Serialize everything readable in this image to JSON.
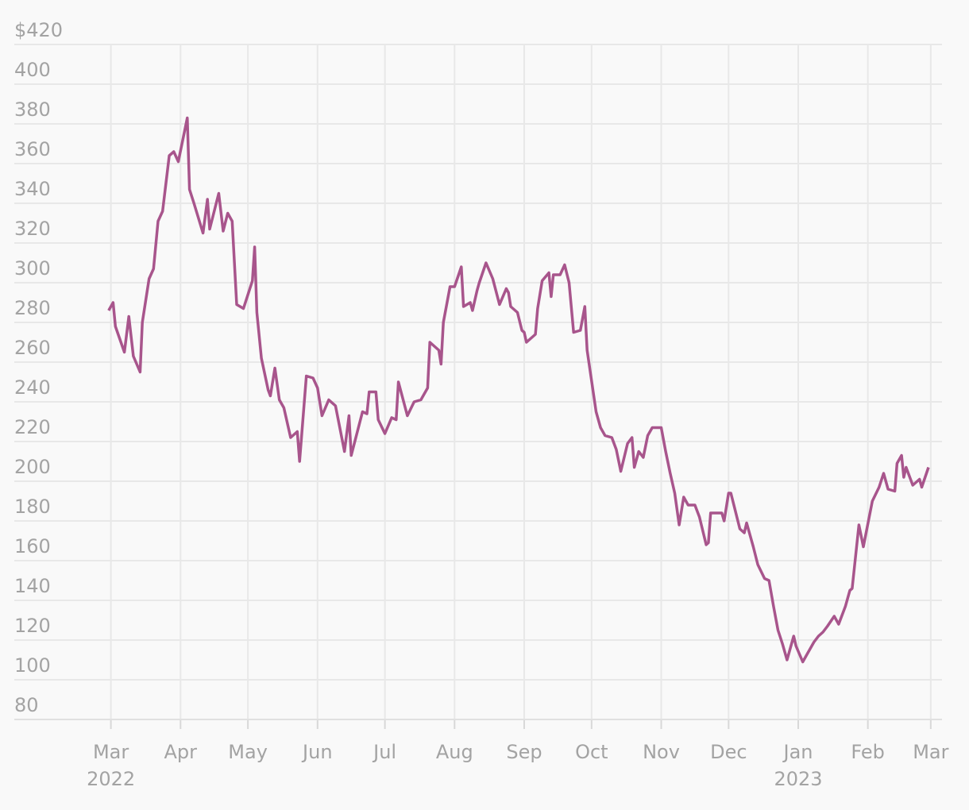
{
  "chart_data": {
    "type": "line",
    "color": "#a8558c",
    "grid": true,
    "x": [
      -1,
      1,
      2,
      6,
      8,
      10,
      13,
      14,
      17,
      19,
      21,
      23,
      26,
      28,
      30,
      34,
      35,
      37,
      41,
      43,
      44,
      48,
      50,
      52,
      54,
      56,
      59,
      63,
      64,
      65,
      67,
      70,
      71,
      73,
      75,
      77,
      80,
      83,
      84,
      87,
      90,
      92,
      94,
      97,
      100,
      104,
      106,
      107,
      112,
      114,
      115,
      118,
      119,
      122,
      125,
      127,
      128,
      132,
      135,
      138,
      141,
      142,
      146,
      147,
      148,
      151,
      153,
      156,
      157,
      160,
      161,
      163,
      164,
      167,
      170,
      173,
      176,
      177,
      178,
      181,
      183,
      184,
      185,
      189,
      190,
      192,
      195,
      196,
      197,
      200,
      202,
      204,
      206,
      209,
      211,
      212,
      216,
      218,
      220,
      223,
      225,
      227,
      230,
      232,
      233,
      235,
      237,
      239,
      241,
      245,
      247,
      249,
      251,
      253,
      255,
      257,
      260,
      262,
      265,
      266,
      267,
      272,
      273,
      275,
      276,
      280,
      282,
      283,
      286,
      288,
      291,
      293,
      295,
      297,
      299,
      301,
      304,
      305,
      308,
      310,
      313,
      315,
      317,
      319,
      322,
      324,
      327,
      329,
      330,
      333,
      335,
      339,
      342,
      344,
      346,
      349,
      350,
      352,
      353,
      354,
      357,
      360,
      361,
      364
    ],
    "values": [
      286,
      290,
      278,
      265,
      283,
      263,
      255,
      280,
      302,
      307,
      331,
      336,
      364,
      366,
      361,
      383,
      347,
      340,
      325,
      342,
      327,
      345,
      326,
      335,
      331,
      289,
      287,
      301,
      318,
      285,
      262,
      246,
      243,
      257,
      241,
      237,
      222,
      225,
      210,
      253,
      252,
      247,
      233,
      241,
      238,
      215,
      233,
      213,
      235,
      234,
      245,
      245,
      231,
      224,
      232,
      231,
      250,
      233,
      240,
      241,
      247,
      270,
      266,
      259,
      280,
      298,
      298,
      308,
      288,
      290,
      286,
      296,
      300,
      310,
      302,
      289,
      297,
      295,
      288,
      285,
      276,
      275,
      270,
      274,
      287,
      301,
      305,
      293,
      304,
      304,
      309,
      300,
      275,
      276,
      288,
      266,
      235,
      227,
      223,
      222,
      216,
      205,
      219,
      222,
      207,
      215,
      212,
      223,
      227,
      227,
      215,
      204,
      194,
      178,
      192,
      188,
      188,
      182,
      168,
      169,
      184,
      184,
      180,
      194,
      194,
      176,
      174,
      179,
      167,
      158,
      151,
      150,
      137,
      125,
      118,
      110,
      122,
      117,
      109,
      113,
      119,
      122,
      124,
      127,
      132,
      128,
      137,
      145,
      146,
      178,
      167,
      190,
      197,
      204,
      196,
      195,
      209,
      213,
      202,
      207,
      198,
      201,
      197,
      207
    ],
    "xlim": [
      -43,
      370
    ],
    "xticks": [
      {
        "value": 0,
        "label": "Mar",
        "year": "2022"
      },
      {
        "value": 31,
        "label": "Apr"
      },
      {
        "value": 61,
        "label": "May"
      },
      {
        "value": 92,
        "label": "Jun"
      },
      {
        "value": 122,
        "label": "Jul"
      },
      {
        "value": 153,
        "label": "Aug"
      },
      {
        "value": 184,
        "label": "Sep"
      },
      {
        "value": 214,
        "label": "Oct"
      },
      {
        "value": 245,
        "label": "Nov"
      },
      {
        "value": 275,
        "label": "Dec"
      },
      {
        "value": 306,
        "label": "Jan",
        "year": "2023"
      },
      {
        "value": 337,
        "label": "Feb"
      },
      {
        "value": 365,
        "label": "Mar"
      }
    ],
    "ylim": [
      80,
      420
    ],
    "yticks": [
      80,
      100,
      120,
      140,
      160,
      180,
      200,
      220,
      240,
      260,
      280,
      300,
      320,
      340,
      360,
      380,
      400,
      {
        "value": 420,
        "label": "$420"
      }
    ]
  }
}
